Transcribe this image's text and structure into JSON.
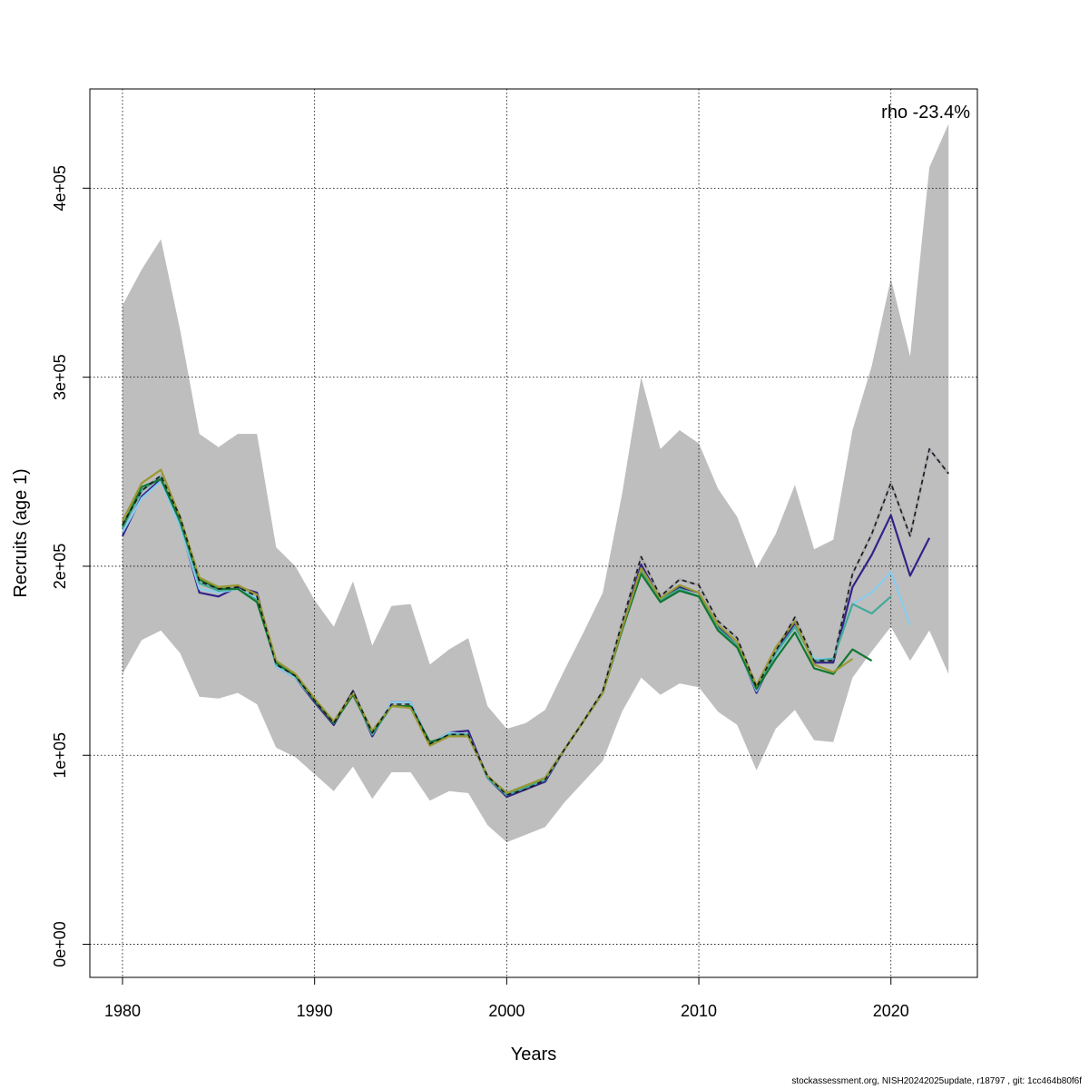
{
  "chart_data": {
    "type": "line",
    "title": "",
    "xlabel": "Years",
    "ylabel": "Recruits (age 1)",
    "annotation": "rho -23.4%",
    "xlim": [
      1978.3,
      2024.5
    ],
    "ylim": [
      -17500,
      452500
    ],
    "x_ticks": [
      1980,
      1990,
      2000,
      2010,
      2020
    ],
    "x_tick_labels": [
      "1980",
      "1990",
      "2000",
      "2010",
      "2020"
    ],
    "y_ticks": [
      0,
      100000,
      200000,
      300000,
      400000
    ],
    "y_tick_labels": [
      "0e+00",
      "1e+05",
      "2e+05",
      "3e+05",
      "4e+05"
    ],
    "grid": true,
    "legend": "none",
    "ci_band": {
      "color": "#bebebe",
      "x": [
        1980,
        1981,
        1982,
        1983,
        1984,
        1985,
        1986,
        1987,
        1988,
        1989,
        1990,
        1991,
        1992,
        1993,
        1994,
        1995,
        1996,
        1997,
        1998,
        1999,
        2000,
        2001,
        2002,
        2003,
        2004,
        2005,
        2006,
        2007,
        2008,
        2009,
        2010,
        2011,
        2012,
        2013,
        2014,
        2015,
        2016,
        2017,
        2018,
        2019,
        2020,
        2021,
        2022,
        2023
      ],
      "upper": [
        338000,
        357000,
        373000,
        325000,
        270000,
        263000,
        270000,
        270000,
        210000,
        200000,
        182000,
        168000,
        192000,
        158000,
        179000,
        180000,
        148000,
        156000,
        162000,
        126000,
        114000,
        117000,
        124000,
        145000,
        165000,
        186000,
        238000,
        300000,
        262000,
        272000,
        265000,
        241000,
        226000,
        199000,
        217000,
        243000,
        209000,
        214000,
        272000,
        306000,
        352000,
        311000,
        411000,
        434000
      ],
      "lower": [
        143000,
        161000,
        166000,
        154000,
        131000,
        130000,
        133000,
        127000,
        104000,
        99000,
        90000,
        81000,
        94000,
        77000,
        91000,
        91000,
        76000,
        81000,
        80000,
        63000,
        54000,
        58000,
        62000,
        75000,
        86000,
        97000,
        123000,
        141000,
        132000,
        138000,
        136000,
        123000,
        116000,
        92000,
        114000,
        124000,
        108000,
        107000,
        141000,
        155000,
        168000,
        150000,
        166000,
        143000
      ]
    },
    "series": [
      {
        "color": "#1f2d7a",
        "dashed": false,
        "x": [
          1980,
          1981,
          1982,
          1983,
          1984,
          1985,
          1986,
          1987,
          1988,
          1989,
          1990,
          1991,
          1992,
          1993,
          1994,
          1995,
          1996,
          1997,
          1998,
          1999,
          2000,
          2001,
          2002,
          2003,
          2004,
          2005,
          2006,
          2007,
          2008,
          2009,
          2010,
          2011,
          2012,
          2013,
          2014,
          2015,
          2016,
          2017,
          2018,
          2019,
          2020,
          2021,
          2022,
          2023
        ],
        "values": [
          222000,
          240000,
          248000,
          226000,
          192000,
          188000,
          189000,
          184000,
          148000,
          142000,
          129000,
          117000,
          134000,
          112000,
          127000,
          127000,
          106000,
          111000,
          111000,
          89000,
          79000,
          82000,
          87000,
          103000,
          118000,
          134000,
          170000,
          205000,
          184000,
          193000,
          190000,
          171000,
          162000,
          136000,
          155000,
          173000,
          150000,
          150000,
          196000,
          217000,
          244000,
          216000,
          262000,
          249000
        ]
      },
      {
        "color": "#b0b0b0",
        "dashed": false,
        "x": [
          1980,
          1981,
          1982,
          1983,
          1984,
          1985,
          1986,
          1987,
          1988,
          1989,
          1990,
          1991,
          1992,
          1993,
          1994,
          1995,
          1996,
          1997,
          1998,
          1999,
          2000,
          2001,
          2002,
          2003,
          2004,
          2005,
          2006,
          2007,
          2008,
          2009,
          2010,
          2011,
          2012,
          2013,
          2014,
          2015,
          2016,
          2017,
          2018,
          2019,
          2020,
          2021,
          2022,
          2023
        ],
        "values": [
          222000,
          240000,
          248000,
          226000,
          192000,
          188000,
          189000,
          184000,
          148000,
          142000,
          129000,
          117000,
          134000,
          112000,
          127000,
          127000,
          106000,
          111000,
          111000,
          89000,
          79000,
          82000,
          87000,
          103000,
          118000,
          134000,
          170000,
          205000,
          184000,
          193000,
          190000,
          171000,
          162000,
          136000,
          155000,
          173000,
          150000,
          150000,
          196000,
          217000,
          244000,
          216000,
          262000,
          249000
        ]
      },
      {
        "color": "#332288",
        "dashed": false,
        "x": [
          1980,
          1981,
          1982,
          1983,
          1984,
          1985,
          1986,
          1987,
          1988,
          1989,
          1990,
          1991,
          1992,
          1993,
          1994,
          1995,
          1996,
          1997,
          1998,
          1999,
          2000,
          2001,
          2002,
          2003,
          2004,
          2005,
          2006,
          2007,
          2008,
          2009,
          2010,
          2011,
          2012,
          2013,
          2014,
          2015,
          2016,
          2017,
          2018,
          2019,
          2020,
          2021,
          2022
        ],
        "values": [
          216000,
          237000,
          246000,
          222000,
          186000,
          184000,
          189000,
          186000,
          147000,
          141000,
          128000,
          116000,
          134000,
          110000,
          128000,
          128000,
          106000,
          112000,
          113000,
          88000,
          78000,
          82000,
          86000,
          103000,
          118000,
          133000,
          167000,
          201000,
          182000,
          189000,
          186000,
          168000,
          158000,
          133000,
          154000,
          170000,
          149000,
          149000,
          189000,
          206000,
          227000,
          195000,
          215000
        ]
      },
      {
        "color": "#88ccee",
        "dashed": false,
        "x": [
          1980,
          1981,
          1982,
          1983,
          1984,
          1985,
          1986,
          1987,
          1988,
          1989,
          1990,
          1991,
          1992,
          1993,
          1994,
          1995,
          1996,
          1997,
          1998,
          1999,
          2000,
          2001,
          2002,
          2003,
          2004,
          2005,
          2006,
          2007,
          2008,
          2009,
          2010,
          2011,
          2012,
          2013,
          2014,
          2015,
          2016,
          2017,
          2018,
          2019,
          2020,
          2021
        ],
        "values": [
          218000,
          236000,
          245000,
          221000,
          188000,
          186000,
          188000,
          183000,
          147000,
          141000,
          129000,
          117000,
          133000,
          111000,
          128000,
          128000,
          106000,
          112000,
          111000,
          88000,
          79000,
          83000,
          87000,
          103000,
          118000,
          133000,
          166000,
          197000,
          182000,
          187000,
          184000,
          167000,
          157000,
          134000,
          153000,
          168000,
          151000,
          151000,
          180000,
          186000,
          197000,
          169000
        ]
      },
      {
        "color": "#44aa99",
        "dashed": false,
        "x": [
          1980,
          1981,
          1982,
          1983,
          1984,
          1985,
          1986,
          1987,
          1988,
          1989,
          1990,
          1991,
          1992,
          1993,
          1994,
          1995,
          1996,
          1997,
          1998,
          1999,
          2000,
          2001,
          2002,
          2003,
          2004,
          2005,
          2006,
          2007,
          2008,
          2009,
          2010,
          2011,
          2012,
          2013,
          2014,
          2015,
          2016,
          2017,
          2018,
          2019,
          2020
        ],
        "values": [
          220000,
          240000,
          247000,
          223000,
          191000,
          187000,
          188000,
          182000,
          148000,
          142000,
          129000,
          117000,
          133000,
          111000,
          126000,
          126000,
          106000,
          111000,
          111000,
          88000,
          79000,
          83000,
          87000,
          103000,
          118000,
          133000,
          166000,
          197000,
          182000,
          188000,
          184000,
          167000,
          158000,
          135000,
          154000,
          168000,
          150000,
          151000,
          180000,
          175000,
          184000
        ]
      },
      {
        "color": "#117733",
        "dashed": false,
        "x": [
          1980,
          1981,
          1982,
          1983,
          1984,
          1985,
          1986,
          1987,
          1988,
          1989,
          1990,
          1991,
          1992,
          1993,
          1994,
          1995,
          1996,
          1997,
          1998,
          1999,
          2000,
          2001,
          2002,
          2003,
          2004,
          2005,
          2006,
          2007,
          2008,
          2009,
          2010,
          2011,
          2012,
          2013,
          2014,
          2015,
          2016,
          2017,
          2018,
          2019
        ],
        "values": [
          221000,
          242000,
          246000,
          224000,
          193000,
          188000,
          188000,
          181000,
          149000,
          142000,
          129000,
          117000,
          132000,
          112000,
          126000,
          126000,
          107000,
          110000,
          110000,
          89000,
          80000,
          84000,
          88000,
          103000,
          118000,
          133000,
          166000,
          196000,
          181000,
          187000,
          184000,
          166000,
          157000,
          135000,
          151000,
          165000,
          146000,
          143000,
          156000,
          150000
        ]
      },
      {
        "color": "#999933",
        "dashed": false,
        "x": [
          1980,
          1981,
          1982,
          1983,
          1984,
          1985,
          1986,
          1987,
          1988,
          1989,
          1990,
          1991,
          1992,
          1993,
          1994,
          1995,
          1996,
          1997,
          1998,
          1999,
          2000,
          2001,
          2002,
          2003,
          2004,
          2005,
          2006,
          2007,
          2008,
          2009,
          2010,
          2011,
          2012,
          2013,
          2014,
          2015,
          2016,
          2017,
          2018
        ],
        "values": [
          224000,
          244000,
          251000,
          226000,
          194000,
          189000,
          190000,
          185000,
          150000,
          143000,
          130000,
          118000,
          133000,
          113000,
          126000,
          125000,
          105000,
          110000,
          110000,
          89000,
          80000,
          84000,
          88000,
          103000,
          118000,
          133000,
          167000,
          199000,
          183000,
          190000,
          186000,
          169000,
          160000,
          137000,
          157000,
          171000,
          148000,
          144000,
          151000
        ]
      },
      {
        "color": "#1a1a1a",
        "dashed": true,
        "x": [
          1980,
          1981,
          1982,
          1983,
          1984,
          1985,
          1986,
          1987,
          1988,
          1989,
          1990,
          1991,
          1992,
          1993,
          1994,
          1995,
          1996,
          1997,
          1998,
          1999,
          2000,
          2001,
          2002,
          2003,
          2004,
          2005,
          2006,
          2007,
          2008,
          2009,
          2010,
          2011,
          2012,
          2013,
          2014,
          2015,
          2016,
          2017,
          2018,
          2019,
          2020,
          2021,
          2022,
          2023
        ],
        "values": [
          222000,
          240000,
          248000,
          226000,
          192000,
          188000,
          189000,
          184000,
          148000,
          142000,
          129000,
          117000,
          134000,
          112000,
          127000,
          127000,
          106000,
          111000,
          111000,
          89000,
          79000,
          82000,
          87000,
          103000,
          118000,
          134000,
          170000,
          205000,
          184000,
          193000,
          190000,
          171000,
          162000,
          136000,
          155000,
          173000,
          150000,
          150000,
          196000,
          217000,
          244000,
          216000,
          262000,
          249000
        ]
      }
    ]
  },
  "footer": {
    "text": "stockassessment.org, NISH20242025update, r18797 , git: 1cc464b80f6f"
  }
}
